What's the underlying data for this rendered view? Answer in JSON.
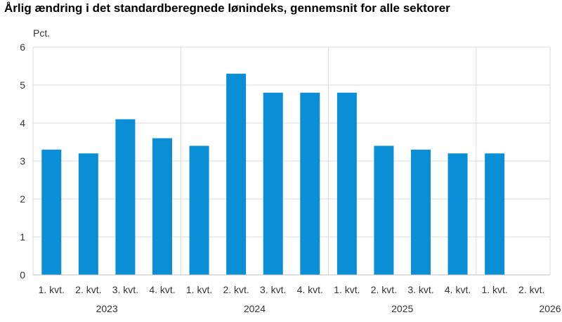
{
  "chart_data": {
    "type": "bar",
    "title": "Årlig ændring i det standardberegnede lønindeks, gennemsnit for alle sektorer",
    "ylabel": "Pct.",
    "ylim": [
      0,
      6
    ],
    "yticks": [
      "0",
      "1",
      "2",
      "3",
      "4",
      "5",
      "6"
    ],
    "categories": [
      "1. kvt.",
      "2. kvt.",
      "3. kvt.",
      "4. kvt.",
      "1. kvt.",
      "2. kvt.",
      "3. kvt.",
      "4. kvt.",
      "1. kvt.",
      "2. kvt.",
      "3. kvt.",
      "4. kvt.",
      "1. kvt.",
      "2. kvt."
    ],
    "groups": [
      "2023",
      "2024",
      "2025",
      "2026"
    ],
    "values": [
      3.3,
      3.2,
      4.1,
      3.6,
      3.4,
      5.3,
      4.8,
      4.8,
      4.8,
      3.4,
      3.3,
      3.2,
      3.2,
      null
    ],
    "bar_color": "#0a8fd6",
    "grid": true,
    "legend": "none"
  }
}
